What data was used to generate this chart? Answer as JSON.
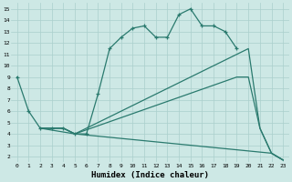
{
  "xlabel": "Humidex (Indice chaleur)",
  "bg_color": "#cde8e5",
  "grid_color": "#aacfcc",
  "line_color": "#2a7a6e",
  "xlim": [
    -0.5,
    23.5
  ],
  "ylim": [
    1.5,
    15.5
  ],
  "yticks": [
    2,
    3,
    4,
    5,
    6,
    7,
    8,
    9,
    10,
    11,
    12,
    13,
    14,
    15
  ],
  "xticks": [
    0,
    1,
    2,
    3,
    4,
    5,
    6,
    7,
    8,
    9,
    10,
    11,
    12,
    13,
    14,
    15,
    16,
    17,
    18,
    19,
    20,
    21,
    22,
    23
  ],
  "line1_x": [
    0,
    1,
    2,
    3,
    4,
    5,
    6,
    7,
    8,
    9,
    10,
    11,
    12,
    13,
    14,
    15,
    16,
    17,
    18,
    19
  ],
  "line1_y": [
    9,
    6,
    4.5,
    4.5,
    4.5,
    4,
    4,
    7.5,
    11.5,
    12.5,
    13.3,
    13.5,
    12.5,
    12.5,
    14.5,
    15,
    13.5,
    13.5,
    13,
    11.5
  ],
  "line2_x": [
    2,
    3,
    4,
    5,
    20,
    21,
    22,
    23
  ],
  "line2_y": [
    4.5,
    4.5,
    4.5,
    4,
    11.5,
    4.5,
    2.3,
    1.7
  ],
  "line3_x": [
    2,
    3,
    4,
    5,
    19,
    20,
    21,
    22,
    23
  ],
  "line3_y": [
    4.5,
    4.5,
    4.5,
    4,
    9.0,
    9.0,
    4.5,
    2.3,
    1.7
  ],
  "line4_x": [
    2,
    5,
    22,
    23
  ],
  "line4_y": [
    4.5,
    4,
    2.3,
    1.7
  ]
}
